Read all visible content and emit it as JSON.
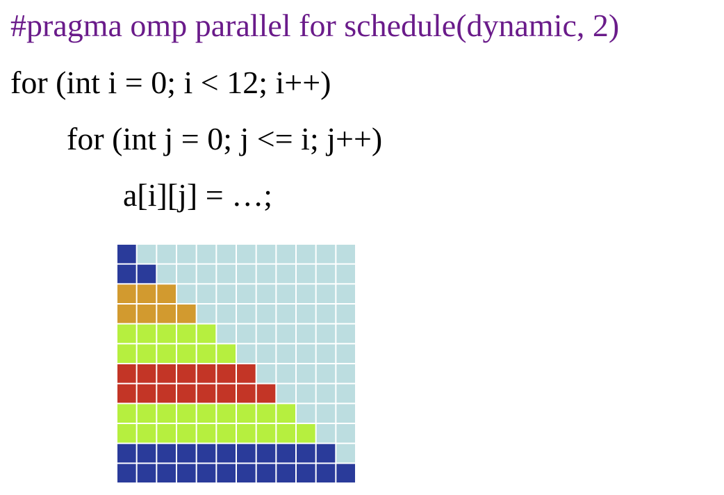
{
  "code": {
    "pragma": "#pragma omp parallel for schedule(dynamic, 2)",
    "outer_loop": "for (int i = 0; i < 12; i++)",
    "inner_loop": "for (int j = 0; j <= i; j++)",
    "body": "a[i][j] = …;"
  },
  "grid": {
    "rows": 12,
    "cols": 12,
    "background_color": "#bcdde0",
    "separator_color": "#ffffff",
    "row_colors": [
      "#2a3b9a",
      "#2a3b9a",
      "#d29a2f",
      "#d29a2f",
      "#b6ef3f",
      "#b6ef3f",
      "#c33526",
      "#c33526",
      "#b6ef3f",
      "#b6ef3f",
      "#2a3b9a",
      "#2a3b9a"
    ]
  }
}
